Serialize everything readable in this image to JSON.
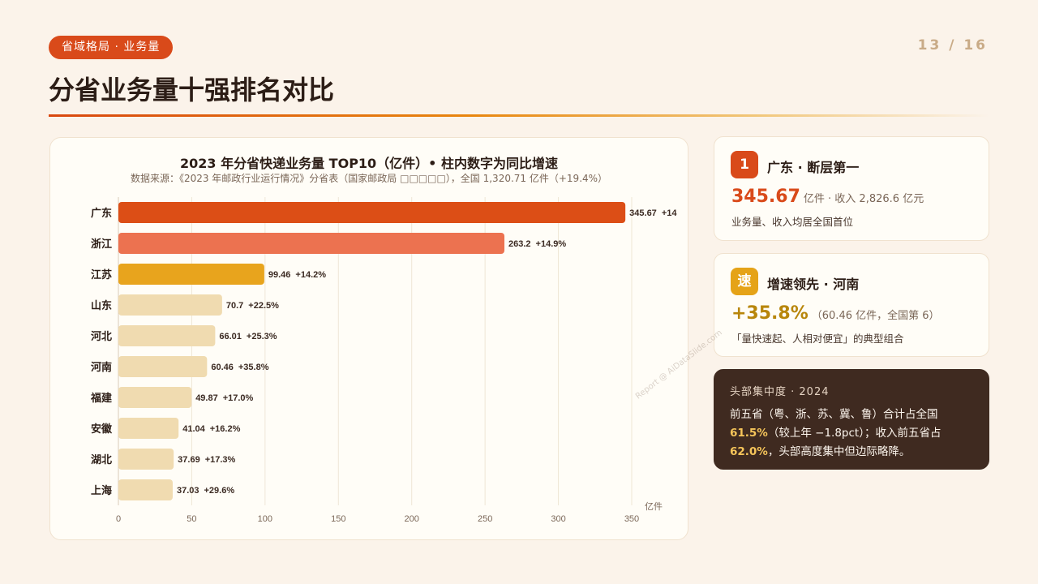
{
  "header": {
    "tag": "省域格局 · 业务量",
    "page": "13 / 16",
    "title": "分省业务量十强排名对比"
  },
  "chart_data": {
    "type": "bar",
    "orientation": "horizontal",
    "title": "2023 年分省快递业务量 TOP10（亿件）• 柱内数字为同比增速",
    "subtitle": "数据来源：《2023 年邮政行业运行情况》分省表（国家邮政局 □□□□□），全国 1,320.71 亿件（+19.4%）",
    "unit_label": "亿件",
    "categories": [
      "广东",
      "浙江",
      "江苏",
      "山东",
      "河北",
      "河南",
      "福建",
      "安徽",
      "湖北",
      "上海"
    ],
    "values": [
      345.67,
      263.2,
      99.46,
      70.7,
      66.01,
      60.46,
      49.87,
      41.04,
      37.69,
      37.03
    ],
    "value_labels": [
      "345.67",
      "263.2",
      "99.46",
      "70.7",
      "66.01",
      "60.46",
      "49.87",
      "41.04",
      "37.69",
      "37.03"
    ],
    "growth_labels": [
      "+14",
      "+14.9%",
      "+14.2%",
      "+22.5%",
      "+25.3%",
      "+35.8%",
      "+17.0%",
      "+16.2%",
      "+17.3%",
      "+29.6%"
    ],
    "bar_colors": [
      "#dc4e16",
      "#ec7250",
      "#e8a41d",
      "#f0dbb0",
      "#f0dbb0",
      "#f0dbb0",
      "#f0dbb0",
      "#f0dbb0",
      "#f0dbb0",
      "#f0dbb0"
    ],
    "x_ticks": [
      "0",
      "50",
      "100",
      "150",
      "200",
      "250",
      "300",
      "350"
    ],
    "xlim": [
      0,
      350
    ],
    "grid": true
  },
  "card1": {
    "badge": "1",
    "title": "广东 · 断层第一",
    "metric": "345.67",
    "metric_note": "亿件 · 收入 2,826.6 亿元",
    "note": "业务量、收入均居全国首位"
  },
  "card2": {
    "badge": "速",
    "title": "增速领先 · 河南",
    "metric": "+35.8%",
    "metric_note": "（60.46 亿件，全国第 6）",
    "note": "「量快速起、人相对便宜」的典型组合"
  },
  "card3": {
    "title": "头部集中度 · 2024",
    "line1": "前五省（粤、浙、苏、冀、鲁）合计占全国",
    "hl1": "61.5%",
    "line2_rest": "（较上年 −1.8pct）；收入前五省占",
    "hl2": "62.0%",
    "line3_rest": "，头部高度集中但边际略降。"
  },
  "watermark": "Report @ AiDataSlide.com",
  "colors": {
    "accent_red": "#d94a1a",
    "accent_gold": "#e5a318",
    "dark_card": "#3f2a20",
    "highlight": "#f6c55a"
  }
}
